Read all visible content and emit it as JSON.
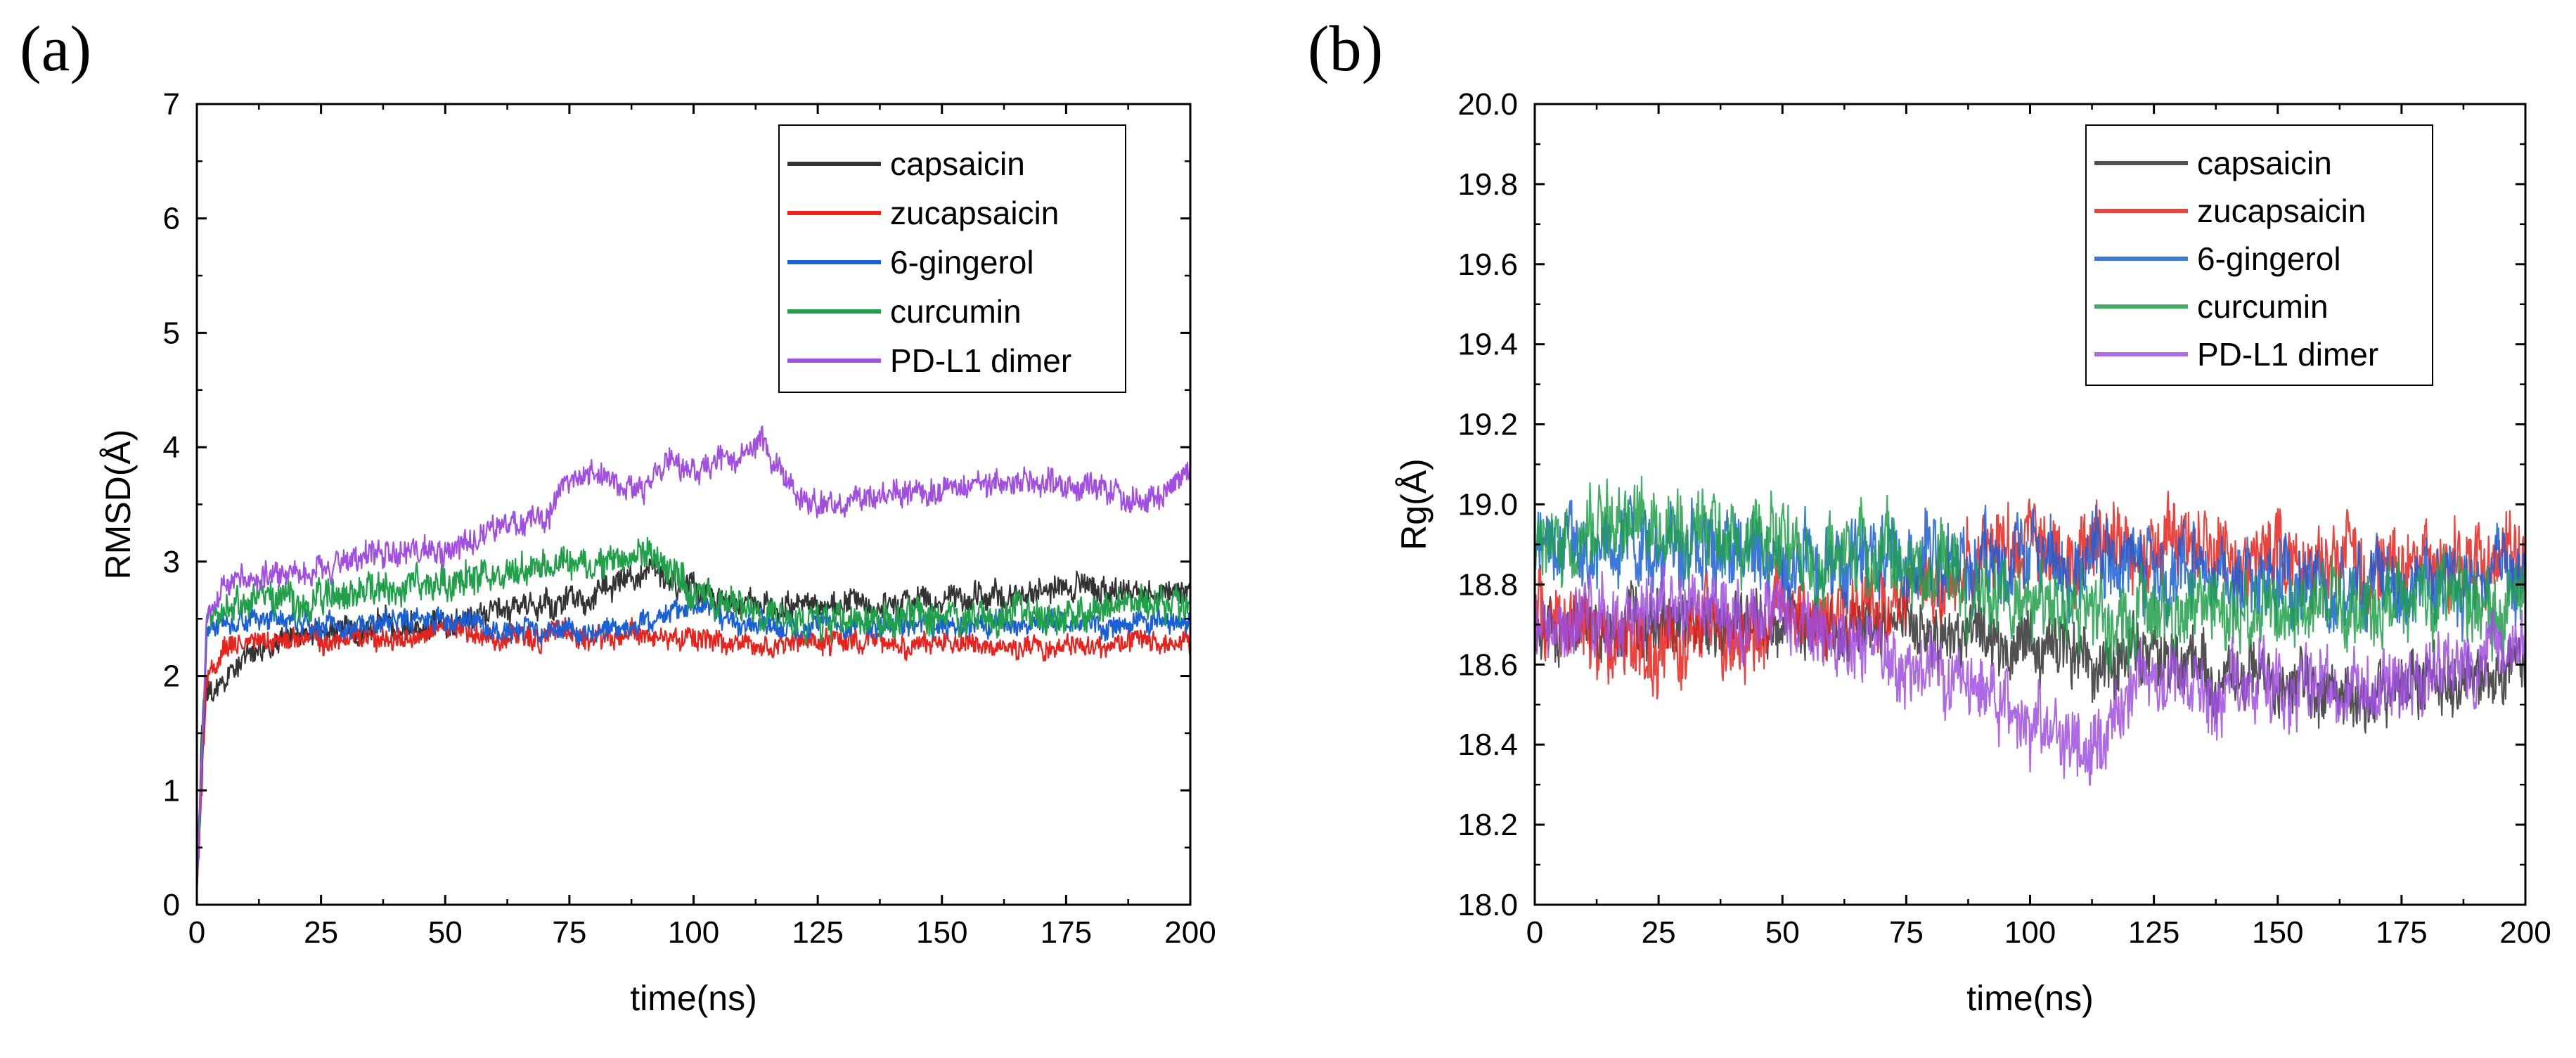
{
  "chart_data": [
    {
      "type": "line",
      "panel_label": "(a)",
      "xlabel": "time(ns)",
      "ylabel": "RMSD(Å)",
      "xlim": [
        0,
        200
      ],
      "ylim": [
        0,
        7
      ],
      "xticks": [
        0,
        25,
        50,
        75,
        100,
        125,
        150,
        175,
        200
      ],
      "yticks": [
        0,
        1,
        2,
        3,
        4,
        5,
        6,
        7
      ],
      "legend_position": "top-right",
      "line_opacity": 1.0,
      "series": [
        {
          "name": "capsaicin",
          "color": "#333333",
          "noise": 0.12,
          "x": [
            0,
            1,
            2,
            5,
            10,
            20,
            30,
            40,
            50,
            60,
            70,
            80,
            90,
            100,
            110,
            125,
            150,
            175,
            200
          ],
          "y": [
            0.1,
            1.6,
            1.8,
            1.9,
            2.2,
            2.35,
            2.4,
            2.45,
            2.5,
            2.55,
            2.6,
            2.75,
            2.85,
            2.8,
            2.6,
            2.6,
            2.65,
            2.75,
            2.75
          ]
        },
        {
          "name": "zucapsaicin",
          "color": "#e8221c",
          "noise": 0.1,
          "x": [
            0,
            2,
            5,
            10,
            20,
            30,
            40,
            50,
            60,
            70,
            80,
            90,
            100,
            110,
            125,
            150,
            175,
            200
          ],
          "y": [
            0.1,
            2.0,
            2.2,
            2.3,
            2.3,
            2.3,
            2.3,
            2.4,
            2.35,
            2.35,
            2.35,
            2.35,
            2.3,
            2.25,
            2.3,
            2.3,
            2.25,
            2.3
          ]
        },
        {
          "name": "6-gingerol",
          "color": "#1a5fd6",
          "noise": 0.1,
          "x": [
            0,
            2,
            5,
            10,
            20,
            30,
            40,
            50,
            60,
            70,
            80,
            90,
            100,
            110,
            125,
            150,
            175,
            200
          ],
          "y": [
            0.1,
            2.4,
            2.5,
            2.5,
            2.5,
            2.45,
            2.5,
            2.5,
            2.45,
            2.4,
            2.4,
            2.45,
            2.6,
            2.45,
            2.45,
            2.45,
            2.45,
            2.5
          ]
        },
        {
          "name": "curcumin",
          "color": "#21a04a",
          "noise": 0.15,
          "x": [
            0,
            2,
            5,
            10,
            20,
            30,
            40,
            50,
            60,
            70,
            80,
            90,
            100,
            110,
            125,
            150,
            175,
            200
          ],
          "y": [
            0.1,
            2.5,
            2.6,
            2.7,
            2.7,
            2.75,
            2.8,
            2.8,
            2.9,
            3.0,
            3.0,
            3.1,
            2.7,
            2.6,
            2.5,
            2.5,
            2.55,
            2.6
          ]
        },
        {
          "name": "PD-L1 dimer",
          "color": "#a04fe0",
          "noise": 0.12,
          "x": [
            0,
            2,
            5,
            10,
            20,
            30,
            40,
            50,
            60,
            70,
            75,
            80,
            90,
            95,
            100,
            110,
            113,
            120,
            125,
            150,
            175,
            190,
            200
          ],
          "y": [
            0.1,
            2.5,
            2.8,
            2.85,
            2.9,
            3.0,
            3.1,
            3.1,
            3.3,
            3.4,
            3.75,
            3.8,
            3.6,
            3.9,
            3.8,
            3.95,
            4.1,
            3.6,
            3.5,
            3.65,
            3.7,
            3.5,
            3.8
          ]
        }
      ]
    },
    {
      "type": "line",
      "panel_label": "(b)",
      "xlabel": "time(ns)",
      "ylabel": "Rg(Å)",
      "xlim": [
        0,
        200
      ],
      "ylim": [
        18.0,
        20.0
      ],
      "xticks": [
        0,
        25,
        50,
        75,
        100,
        125,
        150,
        175,
        200
      ],
      "yticks": [
        "18.0",
        "18.2",
        "18.4",
        "18.6",
        "18.8",
        "19.0",
        "19.2",
        "19.4",
        "19.6",
        "19.8",
        "20.0"
      ],
      "legend_position": "top-right",
      "line_opacity": 0.85,
      "series": [
        {
          "name": "capsaicin",
          "color": "#333333",
          "noise": 0.08,
          "x": [
            0,
            25,
            50,
            75,
            100,
            125,
            150,
            175,
            200
          ],
          "y": [
            18.65,
            18.7,
            18.7,
            18.7,
            18.65,
            18.6,
            18.55,
            18.55,
            18.6
          ]
        },
        {
          "name": "zucapsaicin",
          "color": "#e8221c",
          "noise": 0.1,
          "x": [
            0,
            25,
            50,
            75,
            100,
            125,
            150,
            175,
            200
          ],
          "y": [
            18.7,
            18.65,
            18.7,
            18.75,
            18.9,
            18.9,
            18.85,
            18.85,
            18.85
          ]
        },
        {
          "name": "6-gingerol",
          "color": "#1a5fd6",
          "noise": 0.1,
          "x": [
            0,
            25,
            50,
            75,
            100,
            125,
            150,
            175,
            200
          ],
          "y": [
            18.9,
            18.9,
            18.85,
            18.85,
            18.85,
            18.85,
            18.8,
            18.8,
            18.8
          ]
        },
        {
          "name": "curcumin",
          "color": "#21a04a",
          "noise": 0.1,
          "x": [
            0,
            25,
            50,
            75,
            100,
            125,
            150,
            175,
            200
          ],
          "y": [
            18.9,
            18.95,
            18.9,
            18.85,
            18.75,
            18.75,
            18.75,
            18.75,
            18.75
          ]
        },
        {
          "name": "PD-L1 dimer",
          "color": "#a04fe0",
          "noise": 0.09,
          "x": [
            0,
            25,
            50,
            75,
            90,
            100,
            110,
            125,
            150,
            175,
            200
          ],
          "y": [
            18.7,
            18.75,
            18.7,
            18.6,
            18.55,
            18.45,
            18.4,
            18.55,
            18.55,
            18.55,
            18.65
          ]
        }
      ]
    }
  ]
}
